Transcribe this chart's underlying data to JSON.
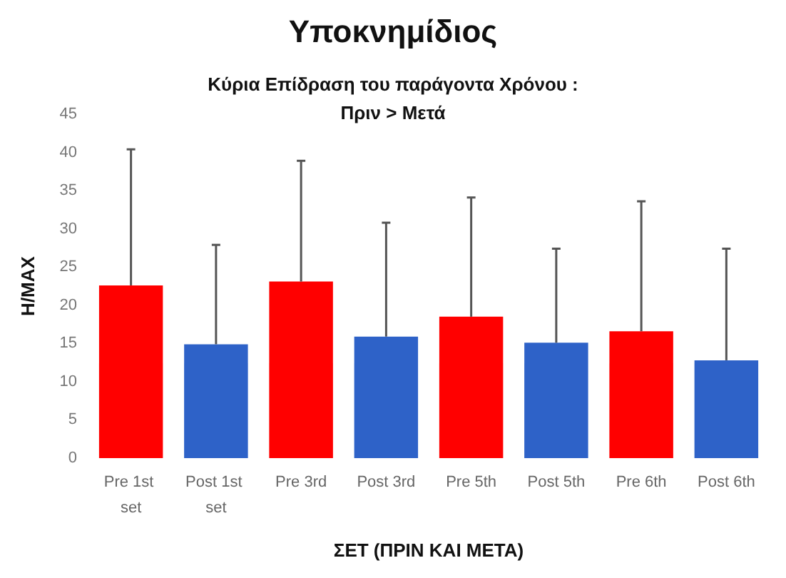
{
  "chart_data": {
    "type": "bar",
    "title": "Υποκνημίδιος",
    "subtitle": "Κύρια Επίδραση του παράγοντα Χρόνου :\nΠριν > Μετά",
    "xlabel": "ΣΕΤ (ΠΡΙΝ ΚΑΙ ΜΕΤΑ)",
    "ylabel": "Η/MAX",
    "categories": [
      "Pre 1st set",
      "Post 1st set",
      "Pre 3rd",
      "Post 3rd",
      "Pre 5th",
      "Post 5th",
      "Pre 6th",
      "Post 6th"
    ],
    "values": [
      22.6,
      14.9,
      23.1,
      15.9,
      18.5,
      15.1,
      16.6,
      12.8
    ],
    "colors": [
      "#ff0000",
      "#2e62c8",
      "#ff0000",
      "#2e62c8",
      "#ff0000",
      "#2e62c8",
      "#ff0000",
      "#2e62c8"
    ],
    "errors": [
      [
        22.6,
        40.4
      ],
      [
        14.9,
        27.9
      ],
      [
        23.1,
        38.9
      ],
      [
        15.9,
        30.8
      ],
      [
        18.5,
        34.1
      ],
      [
        15.1,
        27.4
      ],
      [
        16.6,
        33.6
      ],
      [
        12.8,
        27.4
      ]
    ],
    "ylim": [
      0,
      45
    ],
    "yticks": [
      0,
      5,
      10,
      15,
      20,
      25,
      30,
      35,
      40,
      45
    ]
  }
}
